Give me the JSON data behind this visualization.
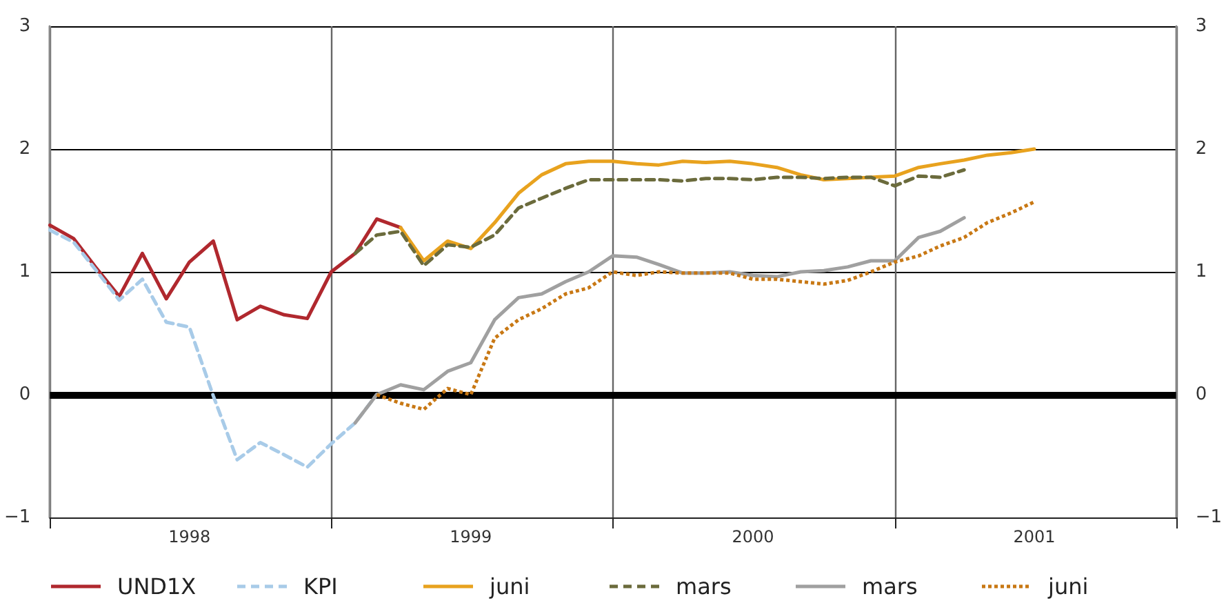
{
  "chart_data": {
    "type": "line",
    "x": [
      "1998-01",
      "1998-02",
      "1998-03",
      "1998-04",
      "1998-05",
      "1998-06",
      "1998-07",
      "1998-08",
      "1998-09",
      "1998-10",
      "1998-11",
      "1998-12",
      "1999-01",
      "1999-02",
      "1999-03",
      "1999-04",
      "1999-05",
      "1999-06",
      "1999-07",
      "1999-08",
      "1999-09",
      "1999-10",
      "1999-11",
      "1999-12",
      "2000-01",
      "2000-02",
      "2000-03",
      "2000-04",
      "2000-05",
      "2000-06",
      "2000-07",
      "2000-08",
      "2000-09",
      "2000-10",
      "2000-11",
      "2000-12",
      "2001-01",
      "2001-02",
      "2001-03",
      "2001-04",
      "2001-05",
      "2001-06",
      "2001-07"
    ],
    "series": [
      {
        "name": "UND1X",
        "color": "#b0282e",
        "line_style": "solid",
        "values": [
          1.38,
          1.27,
          1.04,
          0.8,
          1.15,
          0.78,
          1.08,
          1.25,
          0.61,
          0.72,
          0.65,
          0.62,
          1.0,
          1.15,
          1.43,
          1.36,
          null,
          null,
          null,
          null,
          null,
          null,
          null,
          null,
          null,
          null,
          null,
          null,
          null,
          null,
          null,
          null,
          null,
          null,
          null,
          null,
          null,
          null,
          null,
          null,
          null,
          null,
          null
        ]
      },
      {
        "name": "KPI",
        "color": "#a8cbe8",
        "line_style": "dashed",
        "values": [
          1.34,
          1.24,
          1.02,
          0.77,
          0.94,
          0.59,
          0.55,
          -0.01,
          -0.53,
          -0.39,
          -0.49,
          -0.59,
          -0.4,
          -0.23,
          0.0,
          null,
          null,
          null,
          null,
          null,
          null,
          null,
          null,
          null,
          null,
          null,
          null,
          null,
          null,
          null,
          null,
          null,
          null,
          null,
          null,
          null,
          null,
          null,
          null,
          null,
          null,
          null,
          null
        ]
      },
      {
        "name": "juni",
        "color": "#e8a21e",
        "line_style": "solid",
        "values": [
          null,
          null,
          null,
          null,
          null,
          null,
          null,
          null,
          null,
          null,
          null,
          null,
          null,
          null,
          null,
          1.36,
          1.09,
          1.25,
          1.19,
          1.4,
          1.64,
          1.79,
          1.88,
          1.9,
          1.9,
          1.88,
          1.87,
          1.9,
          1.89,
          1.9,
          1.88,
          1.85,
          1.79,
          1.75,
          1.76,
          1.77,
          1.78,
          1.85,
          1.88,
          1.91,
          1.95,
          1.97,
          2.0
        ]
      },
      {
        "name": "mars",
        "color": "#6b6b3c",
        "line_style": "dashed",
        "values": [
          null,
          null,
          null,
          null,
          null,
          null,
          null,
          null,
          null,
          null,
          null,
          null,
          null,
          1.15,
          1.3,
          1.33,
          1.05,
          1.22,
          1.2,
          1.3,
          1.52,
          1.6,
          1.68,
          1.75,
          1.75,
          1.75,
          1.75,
          1.74,
          1.76,
          1.76,
          1.75,
          1.77,
          1.77,
          1.76,
          1.77,
          1.77,
          1.7,
          1.78,
          1.77,
          1.83,
          null,
          null,
          null
        ]
      },
      {
        "name": "mars",
        "color": "#a0a0a0",
        "line_style": "solid",
        "values": [
          null,
          null,
          null,
          null,
          null,
          null,
          null,
          null,
          null,
          null,
          null,
          null,
          null,
          -0.23,
          0.0,
          0.08,
          0.04,
          0.19,
          0.26,
          0.61,
          0.79,
          0.82,
          0.92,
          1.0,
          1.13,
          1.12,
          1.06,
          0.99,
          0.99,
          1.0,
          0.97,
          0.96,
          1.0,
          1.01,
          1.04,
          1.09,
          1.09,
          1.28,
          1.33,
          1.44,
          null,
          null,
          null
        ]
      },
      {
        "name": "juni",
        "color": "#c87814",
        "line_style": "dotted",
        "values": [
          null,
          null,
          null,
          null,
          null,
          null,
          null,
          null,
          null,
          null,
          null,
          null,
          null,
          null,
          0.0,
          -0.07,
          -0.12,
          0.05,
          0.0,
          0.46,
          0.61,
          0.7,
          0.82,
          0.87,
          1.0,
          0.97,
          1.0,
          0.99,
          0.99,
          0.99,
          0.94,
          0.94,
          0.92,
          0.9,
          0.93,
          1.0,
          1.08,
          1.13,
          1.21,
          1.28,
          1.4,
          1.48,
          1.57
        ]
      }
    ],
    "xlim": [
      "1998-01",
      "2002-01"
    ],
    "xticks": [
      {
        "value": "1998-01",
        "label": null
      },
      {
        "value": "1998-07",
        "label": "1998"
      },
      {
        "value": "1999-01",
        "label": null
      },
      {
        "value": "1999-07",
        "label": "1999"
      },
      {
        "value": "2000-01",
        "label": null
      },
      {
        "value": "2000-07",
        "label": "2000"
      },
      {
        "value": "2001-01",
        "label": null
      },
      {
        "value": "2001-07",
        "label": "2001"
      },
      {
        "value": "2002-01",
        "label": null
      }
    ],
    "ylim": [
      -1,
      3
    ],
    "yticks": [
      {
        "value": -1,
        "label": "−1"
      },
      0,
      1,
      2,
      3
    ],
    "y2lim": [
      -1,
      3
    ],
    "y2ticks": [
      {
        "value": -1,
        "label": "−1"
      },
      0,
      1,
      2,
      3
    ],
    "ref_lines": [
      {
        "axis": "y",
        "value": 0,
        "color": "#000000"
      }
    ],
    "grid": true,
    "legend": "bottom",
    "marker": "none"
  }
}
